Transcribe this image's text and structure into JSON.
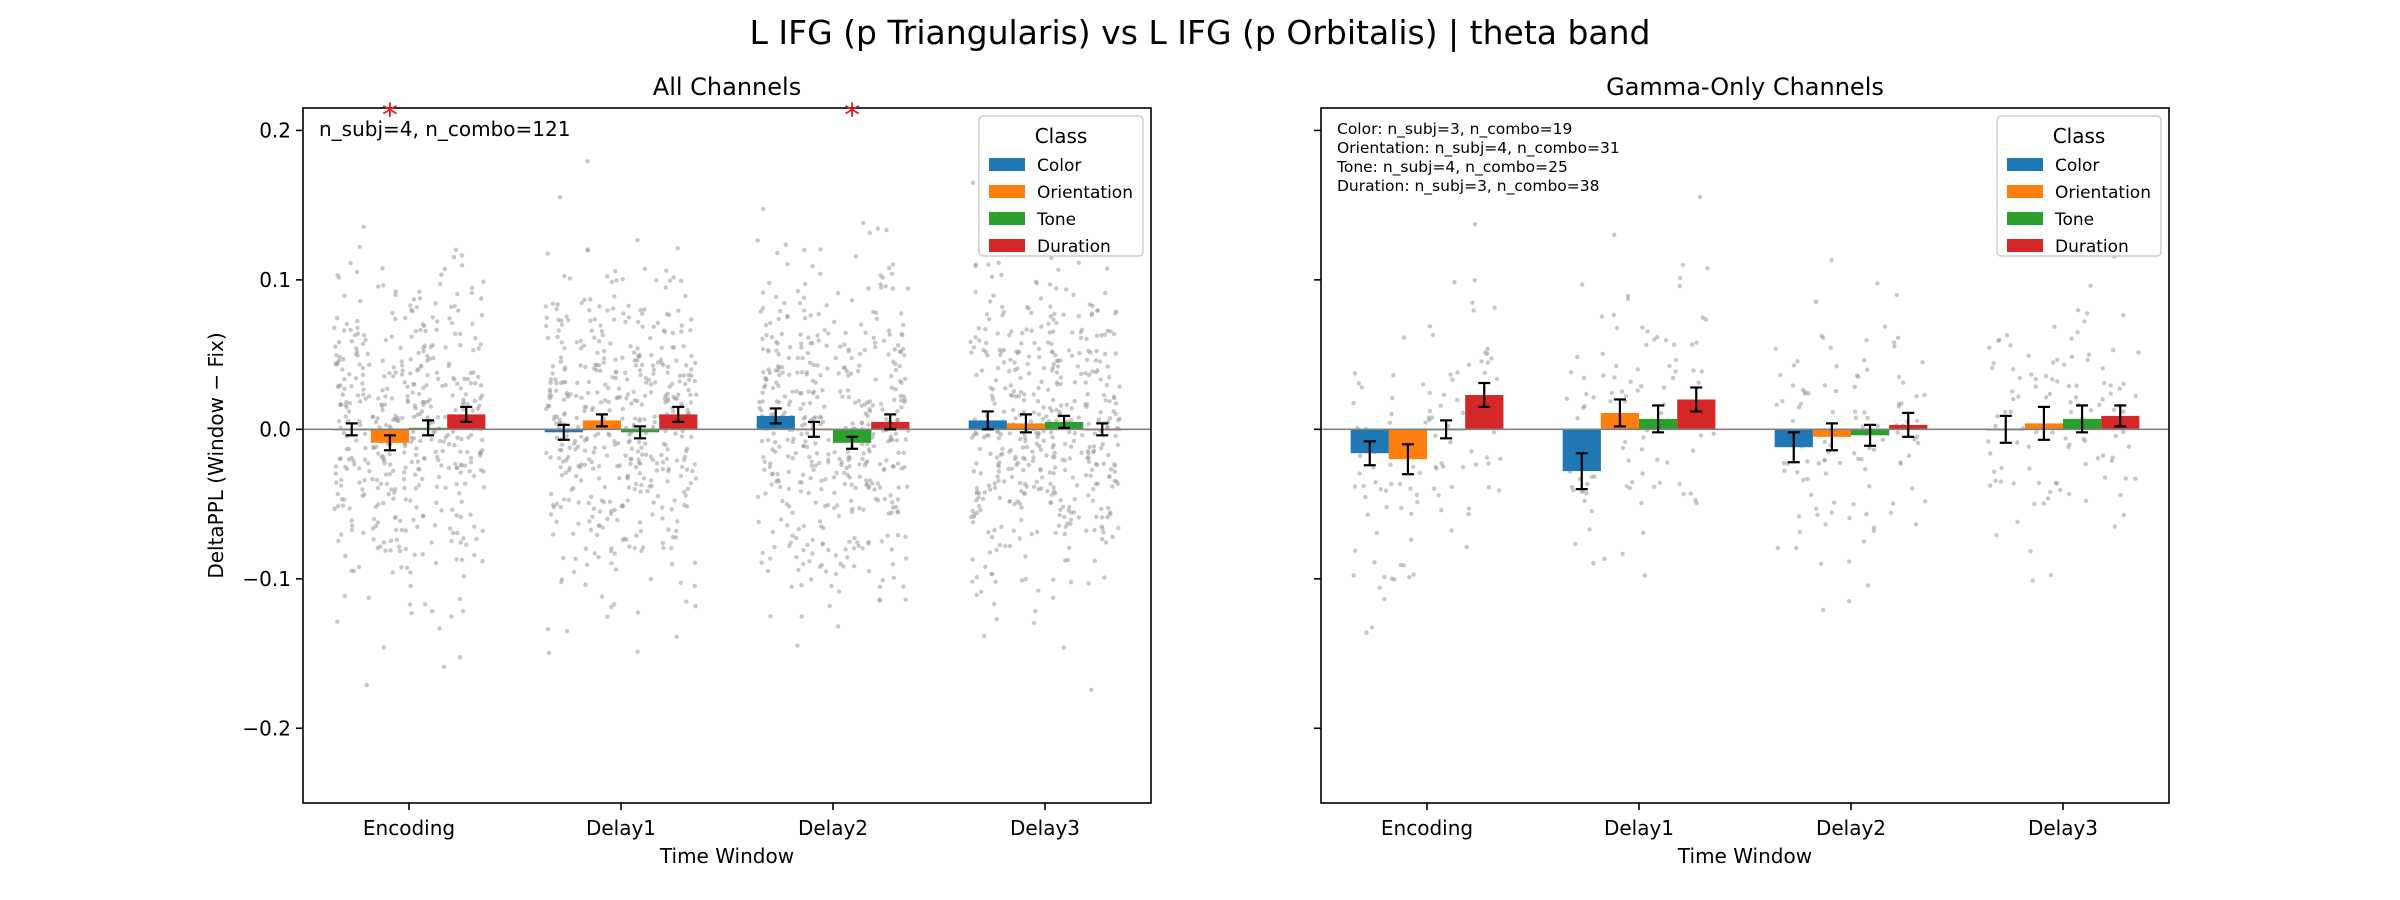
{
  "figure": {
    "suptitle": "L IFG (p Triangularis) vs L IFG (p Orbitalis)  |  theta band",
    "ylabel": "DeltaPPL (Window − Fix)"
  },
  "chart_data": [
    {
      "type": "bar",
      "title": "All Channels",
      "xlabel": "Time Window",
      "ylabel": "DeltaPPL (Window − Fix)",
      "ylim": [
        -0.25,
        0.215
      ],
      "yticks": [
        -0.2,
        -0.1,
        0.0,
        0.1,
        0.2
      ],
      "ytick_labels": [
        "−0.2",
        "−0.1",
        "0.0",
        "0.1",
        "0.2"
      ],
      "categories": [
        "Encoding",
        "Delay1",
        "Delay2",
        "Delay3"
      ],
      "legend": {
        "title": "Class",
        "placement": "top-right"
      },
      "annotation": "n_subj=4, n_combo=121",
      "annotation_lines": [],
      "significance": [
        {
          "category": "Encoding",
          "series": "Orientation",
          "label": "*",
          "color": "#e41a1c"
        },
        {
          "category": "Delay2",
          "series": "Tone",
          "label": "*",
          "color": "#e41a1c"
        }
      ],
      "series": [
        {
          "name": "Color",
          "color": "#1f77b4",
          "values": [
            0.0,
            -0.002,
            0.009,
            0.006
          ],
          "errors": [
            0.004,
            0.005,
            0.005,
            0.006
          ]
        },
        {
          "name": "Orientation",
          "color": "#ff7f0e",
          "values": [
            -0.009,
            0.006,
            0.0,
            0.004
          ],
          "errors": [
            0.005,
            0.004,
            0.005,
            0.006
          ]
        },
        {
          "name": "Tone",
          "color": "#2ca02c",
          "values": [
            0.001,
            -0.002,
            -0.009,
            0.005
          ],
          "errors": [
            0.005,
            0.004,
            0.004,
            0.004
          ]
        },
        {
          "name": "Duration",
          "color": "#d62728",
          "values": [
            0.01,
            0.01,
            0.005,
            0.0
          ],
          "errors": [
            0.005,
            0.005,
            0.005,
            0.004
          ]
        }
      ]
    },
    {
      "type": "bar",
      "title": "Gamma-Only Channels",
      "xlabel": "Time Window",
      "ylabel": "",
      "ylim": [
        -0.25,
        0.215
      ],
      "yticks": [
        -0.2,
        -0.1,
        0.0,
        0.1,
        0.2
      ],
      "ytick_labels": [],
      "categories": [
        "Encoding",
        "Delay1",
        "Delay2",
        "Delay3"
      ],
      "legend": {
        "title": "Class",
        "placement": "top-right"
      },
      "annotation": "",
      "annotation_lines": [
        "Color: n_subj=3, n_combo=19",
        "Orientation: n_subj=4, n_combo=31",
        "Tone: n_subj=4, n_combo=25",
        "Duration: n_subj=3, n_combo=38"
      ],
      "significance": [],
      "series": [
        {
          "name": "Color",
          "color": "#1f77b4",
          "values": [
            -0.016,
            -0.028,
            -0.012,
            0.0
          ],
          "errors": [
            0.008,
            0.012,
            0.01,
            0.009
          ]
        },
        {
          "name": "Orientation",
          "color": "#ff7f0e",
          "values": [
            -0.02,
            0.011,
            -0.005,
            0.004
          ],
          "errors": [
            0.01,
            0.009,
            0.009,
            0.011
          ]
        },
        {
          "name": "Tone",
          "color": "#2ca02c",
          "values": [
            0.0,
            0.007,
            -0.004,
            0.007
          ],
          "errors": [
            0.006,
            0.009,
            0.007,
            0.009
          ]
        },
        {
          "name": "Duration",
          "color": "#d62728",
          "values": [
            0.023,
            0.02,
            0.003,
            0.009
          ],
          "errors": [
            0.008,
            0.008,
            0.008,
            0.007
          ]
        }
      ]
    }
  ]
}
